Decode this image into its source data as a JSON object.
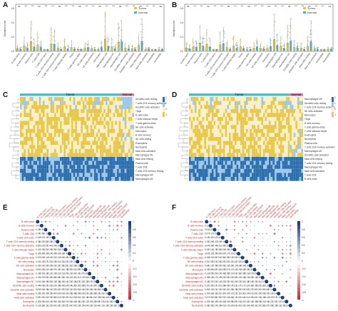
{
  "panels": {
    "A": {
      "letter": "A",
      "ylabel": "Estimated score",
      "legend": [
        "Tumor",
        "Normal"
      ],
      "cell_types": [
        "B cells naive",
        "B cells memory",
        "Plasma cells",
        "T cells CD8",
        "T cells CD4 naive",
        "T cells CD4 memory resting",
        "T cells CD4 memory activated",
        "T cells follicular helper",
        "Tregs",
        "T cells gamma delta",
        "NK cells resting",
        "NK cells activated",
        "Monocytes",
        "Macrophages M0",
        "Macrophages M1",
        "Macrophages M2",
        "Dendritic cells resting",
        "Dendritic cells activated",
        "Mast cells resting",
        "Mast cells activated",
        "Eosinophils",
        "Neutrophils"
      ],
      "tumor_heights": [
        0.15,
        0.35,
        0.7,
        0.45,
        0.05,
        0.55,
        0.2,
        0.3,
        0.25,
        0.1,
        0.2,
        0.15,
        0.1,
        0.9,
        0.3,
        0.65,
        0.2,
        0.15,
        0.4,
        0.1,
        0.05,
        0.1
      ],
      "normal_heights": [
        0.1,
        0.2,
        0.3,
        0.25,
        0.05,
        0.5,
        0.1,
        0.15,
        0.1,
        0.08,
        0.25,
        0.1,
        0.25,
        0.35,
        0.15,
        0.7,
        0.15,
        0.1,
        0.75,
        0.1,
        0.05,
        0.08
      ]
    },
    "B": {
      "letter": "B",
      "ylabel": "Estimated score",
      "legend": [
        "Tumor",
        "Normal"
      ],
      "cell_types": [
        "B cells naive",
        "B cells memory",
        "Plasma cells",
        "T cells CD8",
        "T cells CD4 naive",
        "T cells CD4 memory resting",
        "T cells CD4 memory activated",
        "T cells follicular helper",
        "Tregs",
        "T cells gamma delta",
        "NK cells resting",
        "NK cells activated",
        "Monocytes",
        "Macrophages M0",
        "Macrophages M1",
        "Macrophages M2",
        "Dendritic cells resting",
        "Dendritic cells activated",
        "Mast cells resting",
        "Mast cells activated",
        "Eosinophils",
        "Neutrophils"
      ],
      "tumor_heights": [
        0.2,
        0.3,
        0.6,
        0.5,
        0.05,
        0.45,
        0.25,
        0.35,
        0.3,
        0.1,
        0.2,
        0.2,
        0.15,
        0.85,
        0.35,
        0.6,
        0.25,
        0.2,
        0.35,
        0.15,
        0.05,
        0.1
      ],
      "normal_heights": [
        0.15,
        0.25,
        0.35,
        0.3,
        0.05,
        0.55,
        0.1,
        0.2,
        0.12,
        0.1,
        0.3,
        0.12,
        0.3,
        0.4,
        0.2,
        0.75,
        0.2,
        0.1,
        0.7,
        0.1,
        0.05,
        0.1
      ]
    },
    "C": {
      "letter": "C",
      "groups": [
        "Tumor",
        "Normal"
      ],
      "legend_ticks": [
        "2",
        "1",
        "0",
        "-1"
      ],
      "rows": [
        "Dendritic cells resting",
        "T cells CD4 memory activated",
        "Dendritic cells activated",
        "Tregs",
        "B cells naive",
        "T cells follicular helper",
        "T cells gamma delta",
        "NK cells activated",
        "Monocytes",
        "B cells memory",
        "NK cells resting",
        "Eosinophils",
        "Neutrophils",
        "Mast cells activated",
        "Macrophages M1",
        "Mast cells resting",
        "Plasma cells",
        "T cells CD8",
        "T cells CD4 memory resting",
        "Macrophages M0",
        "Macrophages M2"
      ]
    },
    "D": {
      "letter": "D",
      "groups": [
        "Tumor",
        "Normal"
      ],
      "legend_ticks": [
        "2",
        "1",
        "0",
        "-1"
      ],
      "rows": [
        "Macrophages M0",
        "Dendritic cells resting",
        "T cells CD4 memory activated",
        "NK cells activated",
        "Monocytes",
        "Tregs",
        "B cells memory",
        "T cells gamma delta",
        "T cells follicular helper",
        "Eosinophils",
        "Neutrophils",
        "Plasma cells",
        "T cells CD4 memory activated",
        "Macrophages M1",
        "Dendritic cells activated",
        "Mast cells resting",
        "T cells CD4 memory resting",
        "Macrophages M2",
        "Mast cells activated",
        "T cells CD8",
        "B cells naive"
      ]
    },
    "E": {
      "letter": "E",
      "scale_ticks": [
        "1",
        "0.8",
        "0.6",
        "0.4",
        "0.2",
        "0",
        "-0.2",
        "-0.4",
        "-0.6",
        "-0.8",
        "-1"
      ],
      "rows": [
        "B cells naive",
        "B cells memory",
        "Plasma cells",
        "T cells CD8",
        "T cells CD4 naive",
        "T cells CD4 memory resting",
        "T cells CD4 memory activated",
        "T cells follicular helper",
        "Tregs",
        "T cells gamma delta",
        "NK cells resting",
        "NK cells activated",
        "Monocytes",
        "Macrophages M0",
        "Macrophages M1",
        "Macrophages M2",
        "Dendritic cells resting",
        "Dendritic cells activated",
        "Mast cells resting",
        "Mast cells activated",
        "Eosinophils",
        "Neutrophils"
      ]
    },
    "F": {
      "letter": "F",
      "scale_ticks": [
        "1",
        "0.8",
        "0.6",
        "0.4",
        "0.2",
        "0",
        "-0.2",
        "-0.4",
        "-0.6",
        "-0.8",
        "-1"
      ],
      "rows": [
        "B cells naive",
        "B cells memory",
        "Plasma cells",
        "T cells CD8",
        "T cells CD4 naive",
        "T cells CD4 memory resting",
        "T cells CD4 memory activated",
        "T cells follicular helper",
        "Tregs",
        "T cells gamma delta",
        "NK cells resting",
        "NK cells activated",
        "Monocytes",
        "Macrophages M0",
        "Macrophages M1",
        "Macrophages M2",
        "Dendritic cells resting",
        "Dendritic cells activated",
        "Mast cells resting",
        "Mast cells activated",
        "Eosinophils",
        "Neutrophils"
      ]
    }
  },
  "colors": {
    "tumor": "#e8c43a",
    "normal": "#4fb3d8",
    "heat_high": "#2f6fae",
    "heat_mid": "#f7f0c8",
    "heat_low": "#e8c84a",
    "corr_pos": "#1f3f7a",
    "corr_neg": "#b81e2a",
    "group_bar": "#3fc1d6",
    "group_bar_normal": "#e86aa0"
  }
}
